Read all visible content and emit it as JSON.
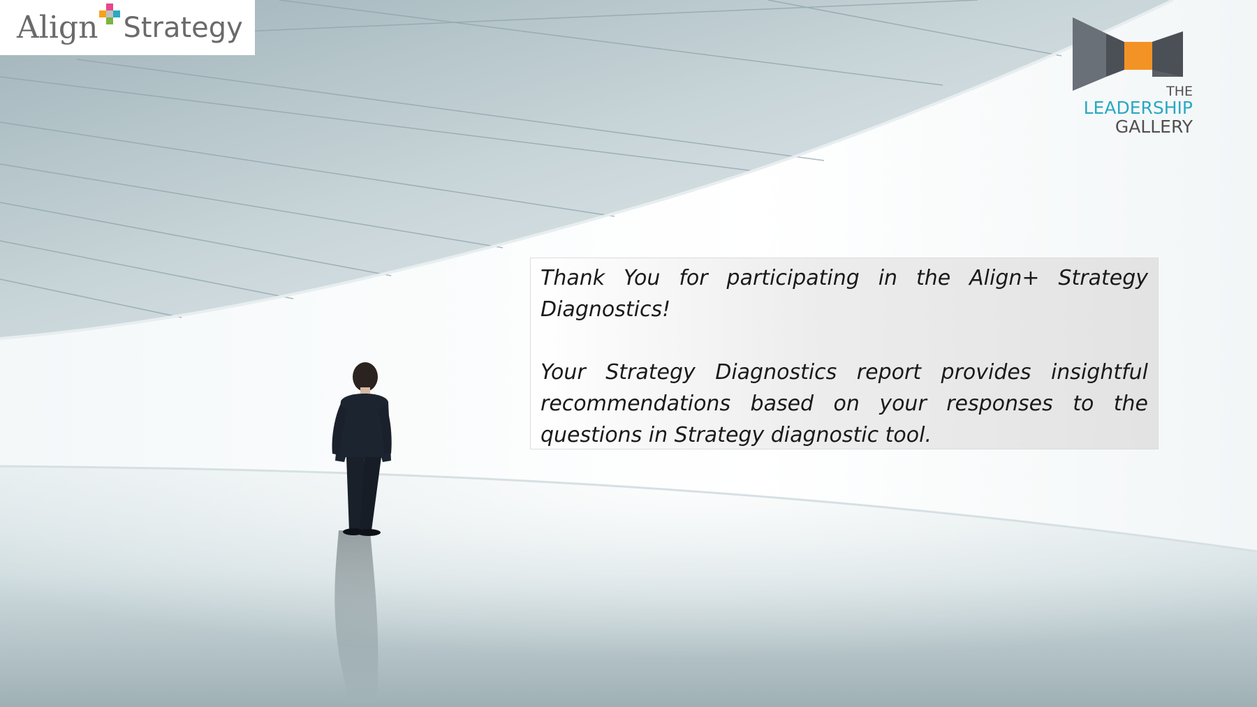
{
  "brand": {
    "align_word": "Align",
    "strategy_word": "Strategy",
    "plus_colors": [
      "#e8478c",
      "#f5a21b",
      "#2aa8c4",
      "#7cb342"
    ]
  },
  "partner_logo": {
    "line1": "THE",
    "line2": "LEADERSHIP",
    "line3": "GALLERY",
    "colors": {
      "grey": "#505050",
      "teal": "#2aa8c4",
      "orange": "#f39325",
      "panel": "#5a5f66"
    }
  },
  "message": {
    "paragraph1": "Thank You for participating in the Align+ Strategy Diagnostics!",
    "paragraph2": "Your Strategy Diagnostics report provides insightful recommendations based on your responses to the questions in Strategy diagnostic tool."
  },
  "background": {
    "description_icon": "man-in-gallery-image"
  }
}
